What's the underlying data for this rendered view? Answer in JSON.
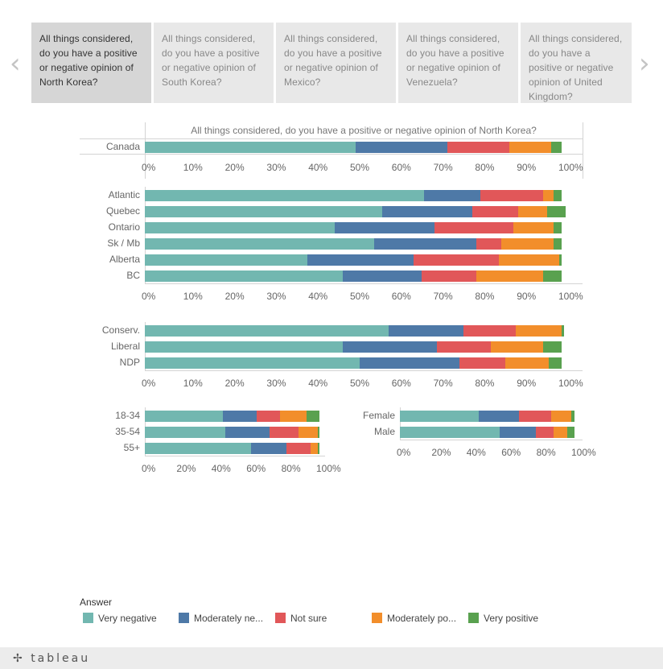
{
  "tabs": [
    {
      "label": "All things considered, do you have a positive or negative opinion of North Korea?"
    },
    {
      "label": "All things considered, do you have a positive or negative opinion of South Korea?"
    },
    {
      "label": "All things considered, do you have a positive or negative opinion of Mexico?"
    },
    {
      "label": "All things considered, do you have a positive or negative opinion of Venezuela?"
    },
    {
      "label": "All things considered, do you have a positive or negative opinion of United Kingdom?"
    }
  ],
  "nav": {
    "prev_icon": "chevron-left-icon",
    "next_icon": "chevron-right-icon"
  },
  "legend": {
    "title": "Answer",
    "items": [
      {
        "label": "Very negative",
        "color": "#72b7b0"
      },
      {
        "label": "Moderately ne...",
        "color": "#4e79a7"
      },
      {
        "label": "Not sure",
        "color": "#e15759"
      },
      {
        "label": "Moderately po...",
        "color": "#f28e2b"
      },
      {
        "label": "Very positive",
        "color": "#59a14f"
      }
    ]
  },
  "footer": {
    "logo": "tableau"
  },
  "chart_data": [
    {
      "type": "bar",
      "orientation": "horizontal",
      "stacked": true,
      "title": "All things considered, do you have a positive or negative opinion of North Korea?",
      "categories": [
        "Canada"
      ],
      "series": [
        {
          "name": "Very negative",
          "values": [
            50.5
          ]
        },
        {
          "name": "Moderately negative",
          "values": [
            22
          ]
        },
        {
          "name": "Not sure",
          "values": [
            15
          ]
        },
        {
          "name": "Moderately positive",
          "values": [
            10
          ]
        },
        {
          "name": "Very positive",
          "values": [
            2.5
          ]
        }
      ],
      "xlim": [
        0,
        100
      ],
      "xticks": [
        "0%",
        "10%",
        "20%",
        "30%",
        "40%",
        "50%",
        "60%",
        "70%",
        "80%",
        "90%",
        "100%"
      ]
    },
    {
      "type": "bar",
      "orientation": "horizontal",
      "stacked": true,
      "categories": [
        "Atlantic",
        "Quebec",
        "Ontario",
        "Sk / Mb",
        "Alberta",
        "BC"
      ],
      "series": [
        {
          "name": "Very negative",
          "values": [
            67,
            57,
            45.5,
            55,
            39,
            47.5
          ]
        },
        {
          "name": "Moderately negative",
          "values": [
            13.5,
            21.5,
            24,
            24.5,
            25.5,
            19
          ]
        },
        {
          "name": "Not sure",
          "values": [
            15,
            11,
            19,
            6,
            20.5,
            13
          ]
        },
        {
          "name": "Moderately positive",
          "values": [
            2.5,
            7,
            9.5,
            12.5,
            14.5,
            16
          ]
        },
        {
          "name": "Very positive",
          "values": [
            2,
            4.5,
            2,
            2,
            0.5,
            4.5
          ]
        }
      ],
      "xlim": [
        0,
        100
      ],
      "xticks": [
        "0%",
        "10%",
        "20%",
        "30%",
        "40%",
        "50%",
        "60%",
        "70%",
        "80%",
        "90%",
        "100%"
      ]
    },
    {
      "type": "bar",
      "orientation": "horizontal",
      "stacked": true,
      "categories": [
        "Conserv.",
        "Liberal",
        "NDP"
      ],
      "series": [
        {
          "name": "Very negative",
          "values": [
            58.5,
            47.5,
            51.5
          ]
        },
        {
          "name": "Moderately negative",
          "values": [
            18,
            22.5,
            24
          ]
        },
        {
          "name": "Not sure",
          "values": [
            12.5,
            13,
            11
          ]
        },
        {
          "name": "Moderately positive",
          "values": [
            11,
            12.5,
            10.5
          ]
        },
        {
          "name": "Very positive",
          "values": [
            0.5,
            4.5,
            3
          ]
        }
      ],
      "xlim": [
        0,
        100
      ],
      "xticks": [
        "0%",
        "10%",
        "20%",
        "30%",
        "40%",
        "50%",
        "60%",
        "70%",
        "80%",
        "90%",
        "100%"
      ]
    },
    {
      "type": "bar",
      "orientation": "horizontal",
      "stacked": true,
      "categories": [
        "18-34",
        "35-54",
        "55+"
      ],
      "series": [
        {
          "name": "Very negative",
          "values": [
            44.5,
            46,
            61
          ]
        },
        {
          "name": "Moderately negative",
          "values": [
            19.5,
            25.5,
            20
          ]
        },
        {
          "name": "Not sure",
          "values": [
            13.5,
            16.5,
            14
          ]
        },
        {
          "name": "Moderately positive",
          "values": [
            15,
            11,
            4
          ]
        },
        {
          "name": "Very positive",
          "values": [
            7.5,
            1,
            1
          ]
        }
      ],
      "xlim": [
        0,
        100
      ],
      "xticks": [
        "0%",
        "20%",
        "40%",
        "60%",
        "80%",
        "100%"
      ]
    },
    {
      "type": "bar",
      "orientation": "horizontal",
      "stacked": true,
      "categories": [
        "Female",
        "Male"
      ],
      "series": [
        {
          "name": "Very negative",
          "values": [
            45,
            57
          ]
        },
        {
          "name": "Moderately negative",
          "values": [
            23,
            21
          ]
        },
        {
          "name": "Not sure",
          "values": [
            18.5,
            10
          ]
        },
        {
          "name": "Moderately positive",
          "values": [
            11.5,
            8
          ]
        },
        {
          "name": "Very positive",
          "values": [
            2,
            4
          ]
        }
      ],
      "xlim": [
        0,
        100
      ],
      "xticks": [
        "0%",
        "20%",
        "40%",
        "60%",
        "80%",
        "100%"
      ]
    }
  ]
}
